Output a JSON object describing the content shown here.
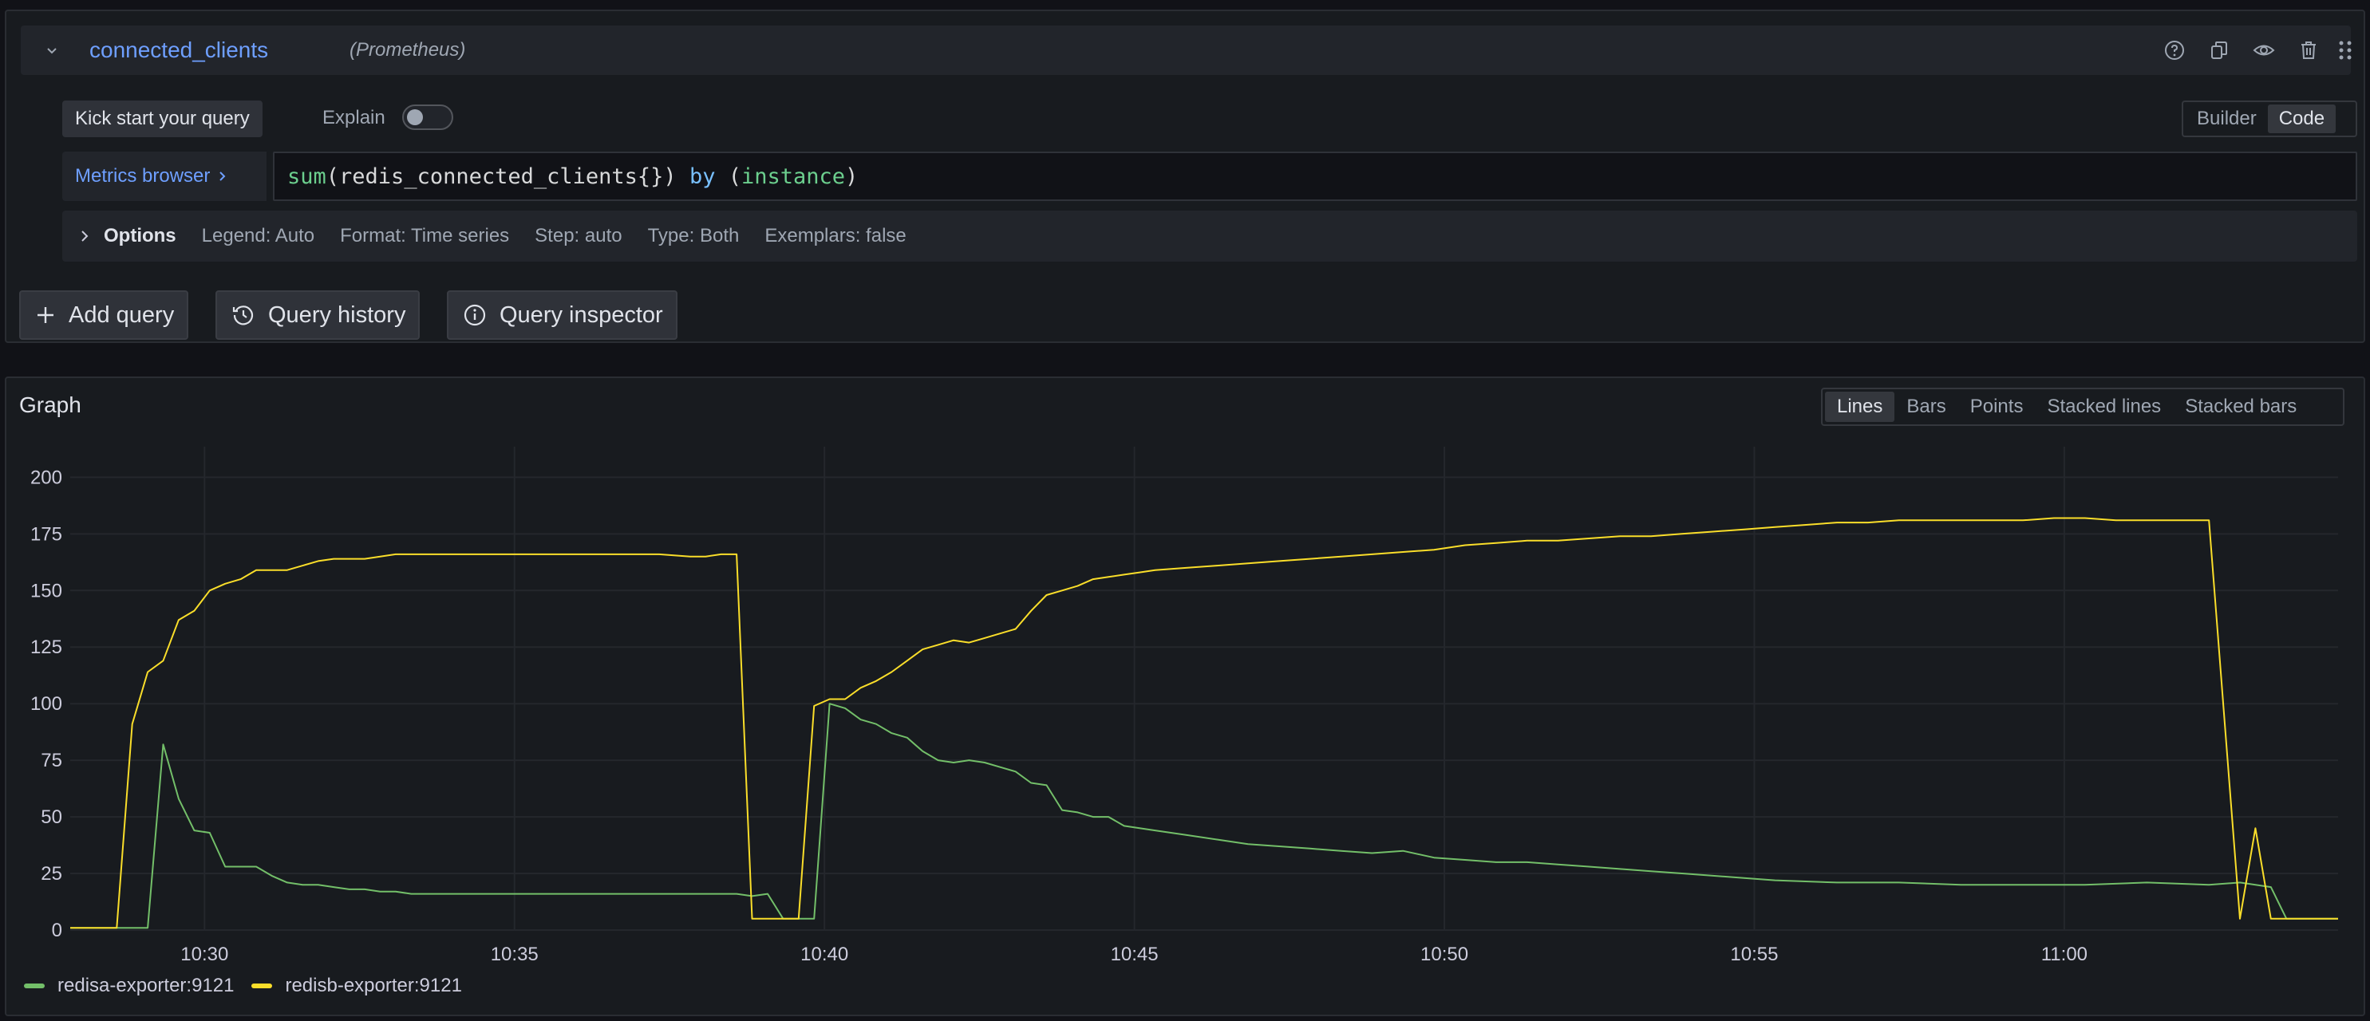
{
  "query": {
    "name": "connected_clients",
    "datasource": "(Prometheus)",
    "kick_start_label": "Kick start your query",
    "explain_label": "Explain",
    "explain_enabled": false,
    "mode_builder": "Builder",
    "mode_code": "Code",
    "active_mode": "Code",
    "metrics_browser_label": "Metrics browser",
    "expr_fn": "sum",
    "expr_metric": "(redis_connected_clients{}) ",
    "expr_by": "by",
    "expr_label": "instance",
    "options": {
      "title": "Options",
      "legend": "Legend: Auto",
      "format": "Format: Time series",
      "step": "Step: auto",
      "type": "Type: Both",
      "exemplars": "Exemplars: false"
    },
    "header_icons": [
      "help-icon",
      "duplicate-icon",
      "eye-icon",
      "trash-icon",
      "drag-handle-icon"
    ]
  },
  "actions": {
    "add_query": "Add query",
    "query_history": "Query history",
    "query_inspector": "Query inspector"
  },
  "graph": {
    "title": "Graph",
    "viz_options": [
      "Lines",
      "Bars",
      "Points",
      "Stacked lines",
      "Stacked bars"
    ],
    "active_viz": "Lines"
  },
  "chart_data": {
    "type": "line",
    "title": "",
    "xlabel": "",
    "ylabel": "",
    "x_ticks": [
      "10:30",
      "10:35",
      "10:40",
      "10:45",
      "10:50",
      "10:55",
      "11:00"
    ],
    "y_ticks": [
      0,
      25,
      50,
      75,
      100,
      125,
      150,
      175,
      200
    ],
    "ylim": [
      0,
      210
    ],
    "xlim": [
      "10:27:50",
      "11:04:25"
    ],
    "grid": true,
    "legend_position": "bottom-left",
    "series": [
      {
        "name": "redisa-exporter:9121",
        "color": "#73bf69",
        "x": [
          "10:27:50",
          "10:29:05",
          "10:29:20",
          "10:29:35",
          "10:29:50",
          "10:30:05",
          "10:30:20",
          "10:30:35",
          "10:30:50",
          "10:31:05",
          "10:31:20",
          "10:31:35",
          "10:31:50",
          "10:32:05",
          "10:32:20",
          "10:32:35",
          "10:32:50",
          "10:33:05",
          "10:33:20",
          "10:33:35",
          "10:33:50",
          "10:34:05",
          "10:34:20",
          "10:34:50",
          "10:35:50",
          "10:36:50",
          "10:37:50",
          "10:38:05",
          "10:38:20",
          "10:38:35",
          "10:38:50",
          "10:39:05",
          "10:39:20",
          "10:39:35",
          "10:39:50",
          "10:40:05",
          "10:40:20",
          "10:40:35",
          "10:40:50",
          "10:41:05",
          "10:41:20",
          "10:41:35",
          "10:41:50",
          "10:42:05",
          "10:42:20",
          "10:42:35",
          "10:42:50",
          "10:43:05",
          "10:43:20",
          "10:43:35",
          "10:43:50",
          "10:44:05",
          "10:44:20",
          "10:44:35",
          "10:44:50",
          "10:45:05",
          "10:45:20",
          "10:45:50",
          "10:46:20",
          "10:46:50",
          "10:47:20",
          "10:47:50",
          "10:48:20",
          "10:48:50",
          "10:49:20",
          "10:49:50",
          "10:50:20",
          "10:50:50",
          "10:51:20",
          "10:51:50",
          "10:52:20",
          "10:52:50",
          "10:53:20",
          "10:53:50",
          "10:54:20",
          "10:54:50",
          "10:55:20",
          "10:56:20",
          "10:57:20",
          "10:58:20",
          "10:59:20",
          "11:00:20",
          "11:01:20",
          "11:02:20",
          "11:02:50",
          "11:03:05",
          "11:03:20",
          "11:03:35",
          "11:03:50",
          "11:04:25"
        ],
        "y": [
          1,
          1,
          82,
          58,
          44,
          43,
          28,
          28,
          28,
          24,
          21,
          20,
          20,
          19,
          18,
          18,
          17,
          17,
          16,
          16,
          16,
          16,
          16,
          16,
          16,
          16,
          16,
          16,
          16,
          16,
          15,
          16,
          5,
          5,
          5,
          100,
          98,
          93,
          91,
          87,
          85,
          79,
          75,
          74,
          75,
          74,
          72,
          70,
          65,
          64,
          53,
          52,
          50,
          50,
          46,
          45,
          44,
          42,
          40,
          38,
          37,
          36,
          35,
          34,
          35,
          32,
          31,
          30,
          30,
          29,
          28,
          27,
          26,
          25,
          24,
          23,
          22,
          21,
          21,
          20,
          20,
          20,
          21,
          20,
          21,
          20,
          19,
          5,
          5,
          5
        ]
      },
      {
        "name": "redisb-exporter:9121",
        "color": "#fade2a",
        "x": [
          "10:27:50",
          "10:28:35",
          "10:28:50",
          "10:29:05",
          "10:29:20",
          "10:29:35",
          "10:29:50",
          "10:30:05",
          "10:30:20",
          "10:30:35",
          "10:30:50",
          "10:31:05",
          "10:31:20",
          "10:31:35",
          "10:31:50",
          "10:32:05",
          "10:32:20",
          "10:32:35",
          "10:32:50",
          "10:33:05",
          "10:33:20",
          "10:33:35",
          "10:33:50",
          "10:34:05",
          "10:34:50",
          "10:35:50",
          "10:36:50",
          "10:37:20",
          "10:37:50",
          "10:38:05",
          "10:38:20",
          "10:38:35",
          "10:38:50",
          "10:39:05",
          "10:39:20",
          "10:39:35",
          "10:39:50",
          "10:40:05",
          "10:40:20",
          "10:40:35",
          "10:40:50",
          "10:41:05",
          "10:41:20",
          "10:41:35",
          "10:41:50",
          "10:42:05",
          "10:42:20",
          "10:42:35",
          "10:42:50",
          "10:43:05",
          "10:43:20",
          "10:43:35",
          "10:43:50",
          "10:44:05",
          "10:44:20",
          "10:44:35",
          "10:44:50",
          "10:45:05",
          "10:45:20",
          "10:45:50",
          "10:46:20",
          "10:46:50",
          "10:47:20",
          "10:47:50",
          "10:48:20",
          "10:48:50",
          "10:49:20",
          "10:49:50",
          "10:50:20",
          "10:50:50",
          "10:51:20",
          "10:51:50",
          "10:52:20",
          "10:52:50",
          "10:53:20",
          "10:53:50",
          "10:54:20",
          "10:54:50",
          "10:55:20",
          "10:55:50",
          "10:56:20",
          "10:56:50",
          "10:57:20",
          "10:58:20",
          "10:59:20",
          "10:59:50",
          "11:00:20",
          "11:00:50",
          "11:01:20",
          "11:01:50",
          "11:02:20",
          "11:02:50",
          "11:03:05",
          "11:03:20",
          "11:03:35",
          "11:03:50",
          "11:04:25"
        ],
        "y": [
          1,
          1,
          91,
          114,
          119,
          137,
          141,
          150,
          153,
          155,
          159,
          159,
          159,
          161,
          163,
          164,
          164,
          164,
          165,
          166,
          166,
          166,
          166,
          166,
          166,
          166,
          166,
          166,
          165,
          165,
          166,
          166,
          5,
          5,
          5,
          5,
          99,
          102,
          102,
          107,
          110,
          114,
          119,
          124,
          126,
          128,
          127,
          129,
          131,
          133,
          141,
          148,
          150,
          152,
          155,
          156,
          157,
          158,
          159,
          160,
          161,
          162,
          163,
          164,
          165,
          166,
          167,
          168,
          170,
          171,
          172,
          172,
          173,
          174,
          174,
          175,
          176,
          177,
          178,
          179,
          180,
          180,
          181,
          181,
          181,
          182,
          182,
          181,
          181,
          181,
          181,
          5,
          45,
          5,
          5,
          5,
          5
        ]
      }
    ]
  }
}
